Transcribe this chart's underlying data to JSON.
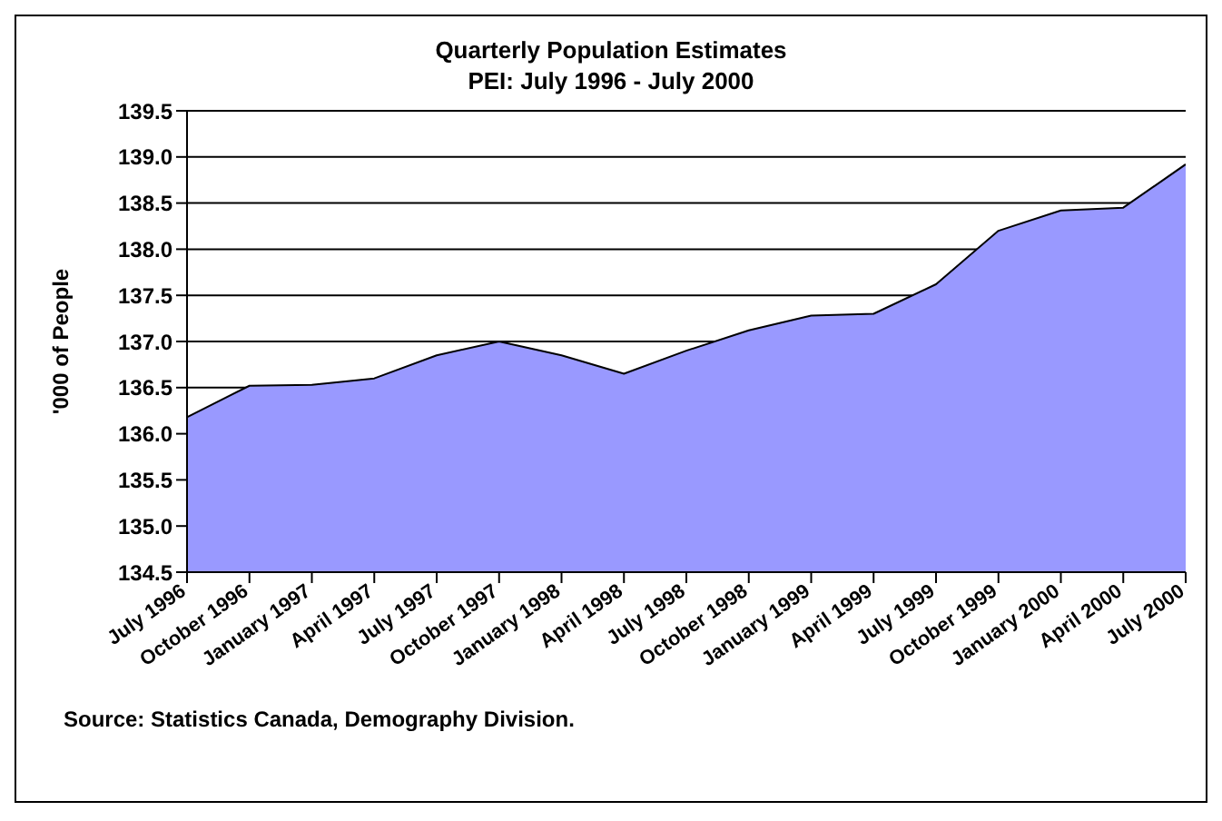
{
  "chart_data": {
    "type": "area",
    "title": "Quarterly Population Estimates\nPEI: July 1996 - July 2000",
    "ylabel": "'000 of People",
    "categories": [
      "July 1996",
      "October 1996",
      "January 1997",
      "April 1997",
      "July 1997",
      "October 1997",
      "January 1998",
      "April 1998",
      "July 1998",
      "October 1998",
      "January 1999",
      "April 1999",
      "July 1999",
      "October 1999",
      "January 2000",
      "April 2000",
      "July 2000"
    ],
    "values": [
      136.18,
      136.52,
      136.53,
      136.6,
      136.85,
      137.0,
      136.85,
      136.65,
      136.9,
      137.12,
      137.28,
      137.3,
      137.62,
      138.2,
      138.42,
      138.45,
      138.92
    ],
    "color": "#9999ff",
    "ylim": [
      134.5,
      139.5
    ],
    "yticks": [
      {
        "value": 134.5,
        "label": "134.5"
      },
      {
        "value": 135,
        "label": "135.0"
      },
      {
        "value": 135.5,
        "label": "135.5"
      },
      {
        "value": 136,
        "label": "136.0"
      },
      {
        "value": 136.5,
        "label": "136.5"
      },
      {
        "value": 137,
        "label": "137.0"
      },
      {
        "value": 137.5,
        "label": "137.5"
      },
      {
        "value": 138,
        "label": "138.0"
      },
      {
        "value": 138.5,
        "label": "138.5"
      },
      {
        "value": 139,
        "label": "139.0"
      },
      {
        "value": 139.5,
        "label": "139.5"
      }
    ],
    "grid": "y",
    "annotations": [
      "Source: Statistics Canada, Demography Division."
    ]
  }
}
